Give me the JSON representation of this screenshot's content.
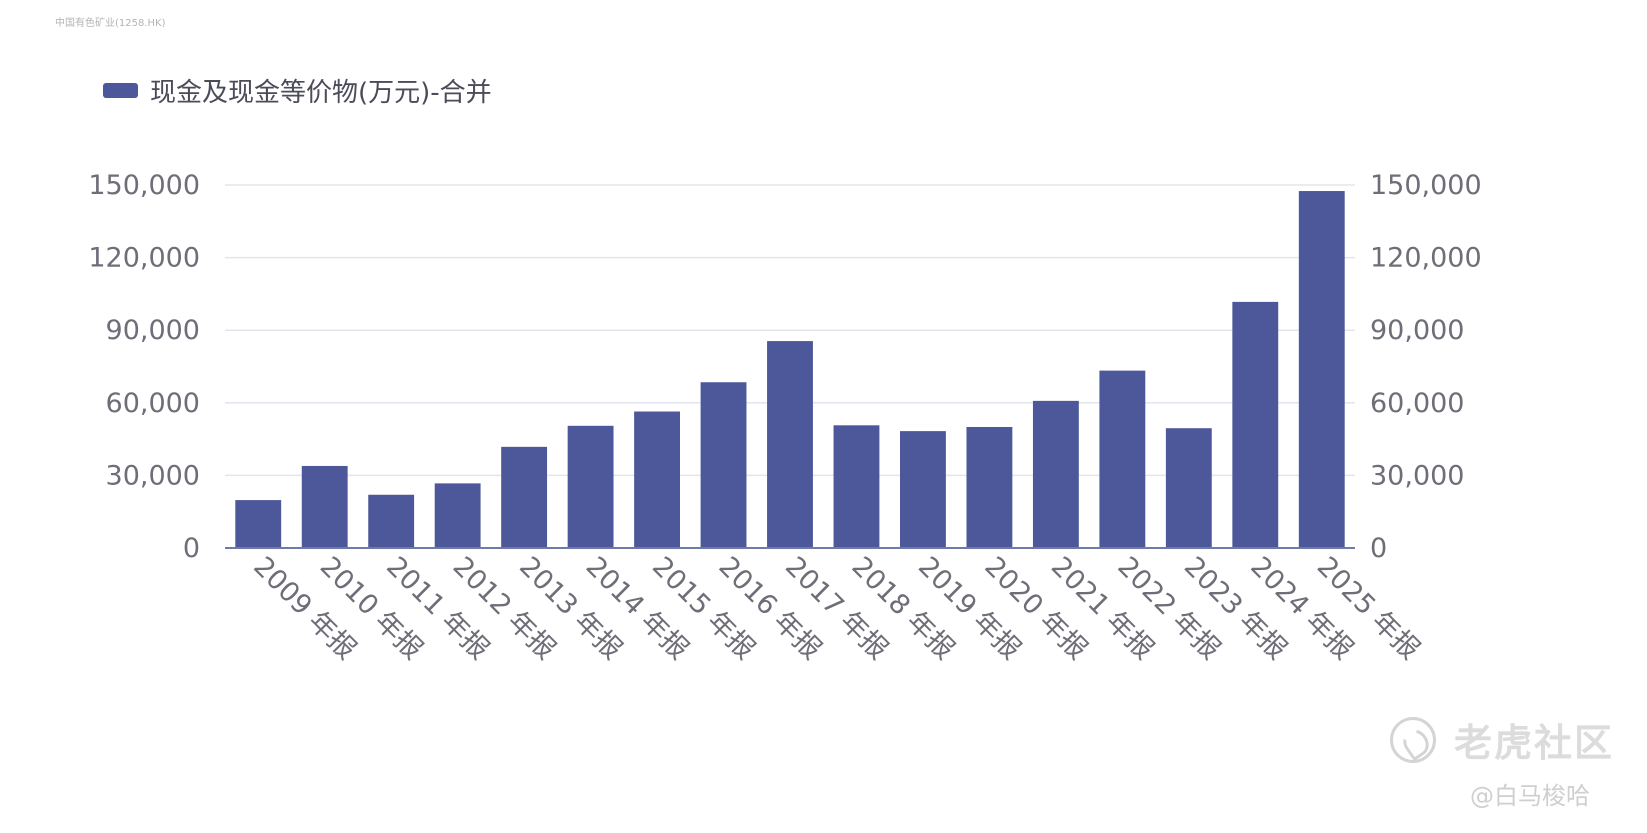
{
  "source_label": "中国有色矿业(1258.HK)",
  "colors": {
    "bar": "#4c5899",
    "grid": "#e3e5ee",
    "axis": "#6f7aa8"
  },
  "watermark": {
    "brand": "老虎社区",
    "user": "@白马梭哈",
    "logo_icon": "tiger-logo-icon"
  },
  "chart_data": {
    "type": "bar",
    "legend_position": "top-left",
    "grid": true,
    "yaxis_sides": [
      "left",
      "right"
    ],
    "ylim": [
      0,
      150000
    ],
    "yticks": [
      0,
      30000,
      60000,
      90000,
      120000,
      150000
    ],
    "ytick_labels": [
      "0",
      "30,000",
      "60,000",
      "90,000",
      "120,000",
      "150,000"
    ],
    "categories": [
      "2009 年报",
      "2010 年报",
      "2011 年报",
      "2012 年报",
      "2013 年报",
      "2014 年报",
      "2015 年报",
      "2016 年报",
      "2017 年报",
      "2018 年报",
      "2019 年报",
      "2020 年报",
      "2021 年报",
      "2022 年报",
      "2023 年报",
      "2024 年报",
      "2025 年报"
    ],
    "series": [
      {
        "name": "现金及现金等价物(万元)-合并",
        "values": [
          19800,
          33900,
          22000,
          26700,
          41800,
          50500,
          56400,
          68500,
          85500,
          50700,
          48300,
          50000,
          60800,
          73300,
          49500,
          101700,
          147500
        ]
      }
    ]
  }
}
